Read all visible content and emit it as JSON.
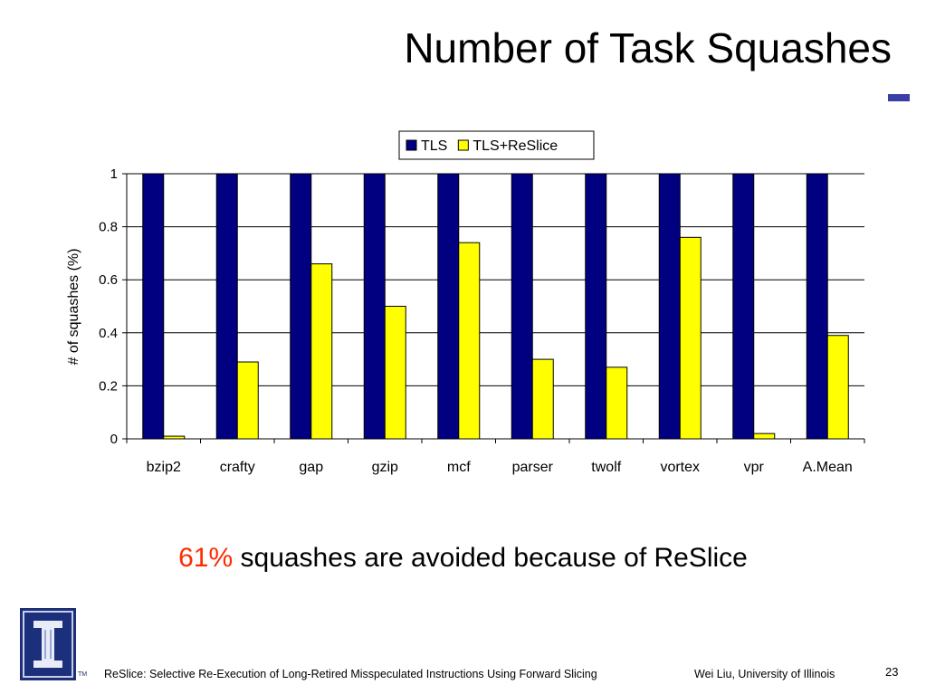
{
  "slide": {
    "title": "Number of Task Squashes",
    "caption_highlight": "61%",
    "caption_rest": " squashes are avoided because of ReSlice",
    "footer_left": "ReSlice: Selective Re-Execution of Long-Retired Misspeculated Instructions Using Forward Slicing",
    "footer_right": "Wei Liu, University of Illinois",
    "page_number": "23",
    "logo_tm": "TM",
    "accent_rule_color": "#3a3fa8",
    "highlight_color": "#ff2a00"
  },
  "chart_data": {
    "type": "bar",
    "categories": [
      "bzip2",
      "crafty",
      "gap",
      "gzip",
      "mcf",
      "parser",
      "twolf",
      "vortex",
      "vpr",
      "A.Mean"
    ],
    "series": [
      {
        "name": "TLS",
        "color": "#000080",
        "values": [
          1,
          1,
          1,
          1,
          1,
          1,
          1,
          1,
          1,
          1
        ]
      },
      {
        "name": "TLS+ReSlice",
        "color": "#ffff00",
        "values": [
          0.01,
          0.29,
          0.66,
          0.5,
          0.74,
          0.3,
          0.27,
          0.76,
          0.02,
          0.39
        ]
      }
    ],
    "ylabel": "# of squashes (%)",
    "xlabel": "",
    "ylim": [
      0,
      1
    ],
    "yticks": [
      "0",
      "0.2",
      "0.4",
      "0.6",
      "0.8",
      "1"
    ],
    "grid": true,
    "legend_position": "top-center"
  }
}
